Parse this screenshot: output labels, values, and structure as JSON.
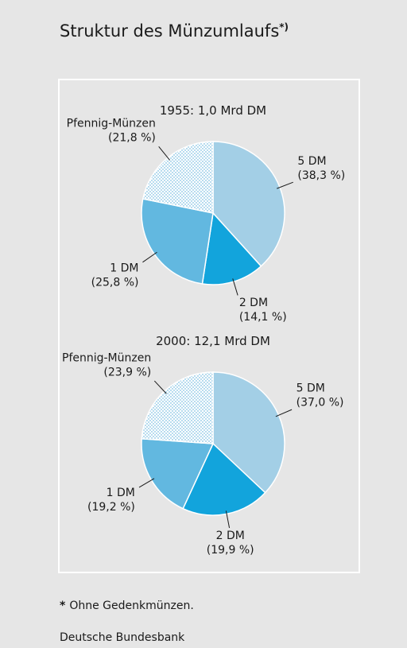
{
  "title": "Struktur des Münzumlaufs",
  "title_note": "*)",
  "chart_data": [
    {
      "type": "pie",
      "title": "1955: 1,0 Mrd DM",
      "categories": [
        "5 DM",
        "2 DM",
        "1 DM",
        "Pfennig-Münzen"
      ],
      "values": [
        38.3,
        14.1,
        25.8,
        21.8
      ],
      "value_labels": [
        "(38,3 %)",
        "(14,1 %)",
        "(25,8 %)",
        "(21,8 %)"
      ],
      "colors": [
        "#a3cfe6",
        "#12a4dc",
        "#62b8e0",
        "#ffffff"
      ],
      "patterns": [
        null,
        null,
        null,
        "dots"
      ]
    },
    {
      "type": "pie",
      "title": "2000: 12,1 Mrd DM",
      "categories": [
        "5 DM",
        "2 DM",
        "1 DM",
        "Pfennig-Münzen"
      ],
      "values": [
        37.0,
        19.9,
        19.2,
        23.9
      ],
      "value_labels": [
        "(37,0 %)",
        "(19,9 %)",
        "(19,2 %)",
        "(23,9 %)"
      ],
      "colors": [
        "#a3cfe6",
        "#12a4dc",
        "#62b8e0",
        "#ffffff"
      ],
      "patterns": [
        null,
        null,
        null,
        "dots"
      ]
    }
  ],
  "footnote_marker": "*",
  "footnote": "Ohne Gedenkmünzen.",
  "source": "Deutsche Bundesbank"
}
